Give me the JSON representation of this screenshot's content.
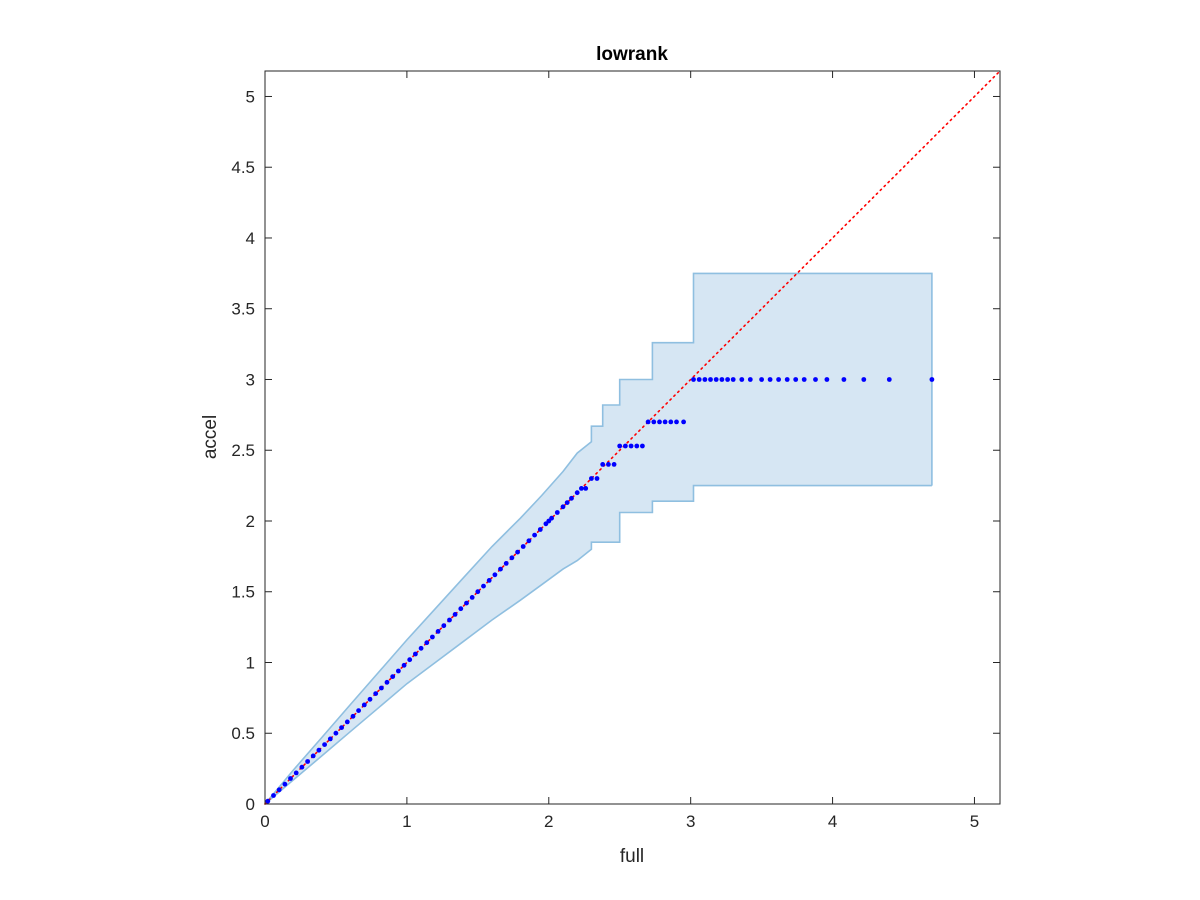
{
  "chart_data": {
    "type": "scatter",
    "title": "lowrank",
    "xlabel": "full",
    "ylabel": "accel",
    "xlim": [
      0,
      5.18
    ],
    "ylim": [
      0,
      5.18
    ],
    "xticks": [
      0,
      1,
      2,
      3,
      4,
      5
    ],
    "yticks": [
      0,
      0.5,
      1,
      1.5,
      2,
      2.5,
      3,
      3.5,
      4,
      4.5,
      5
    ],
    "xtick_labels": [
      "0",
      "1",
      "2",
      "3",
      "4",
      "5"
    ],
    "ytick_labels": [
      "0",
      "0.5",
      "1",
      "1.5",
      "2",
      "2.5",
      "3",
      "3.5",
      "4",
      "4.5",
      "5"
    ],
    "grid": false,
    "reference_line": {
      "style": "dotted",
      "color": "#ff0000",
      "x": [
        0,
        5.18
      ],
      "y": [
        0,
        5.18
      ]
    },
    "band": {
      "fill": "#d6e6f3",
      "stroke": "#8fbfe0",
      "upper": [
        [
          0,
          0
        ],
        [
          0.2,
          0.24
        ],
        [
          0.4,
          0.47
        ],
        [
          0.6,
          0.7
        ],
        [
          0.8,
          0.93
        ],
        [
          1.0,
          1.16
        ],
        [
          1.2,
          1.38
        ],
        [
          1.4,
          1.6
        ],
        [
          1.6,
          1.82
        ],
        [
          1.8,
          2.02
        ],
        [
          1.95,
          2.18
        ],
        [
          2.1,
          2.35
        ],
        [
          2.2,
          2.48
        ],
        [
          2.3,
          2.56
        ],
        [
          2.3,
          2.67
        ],
        [
          2.38,
          2.67
        ],
        [
          2.38,
          2.82
        ],
        [
          2.5,
          2.82
        ],
        [
          2.5,
          3.0
        ],
        [
          2.73,
          3.0
        ],
        [
          2.73,
          3.26
        ],
        [
          3.02,
          3.26
        ],
        [
          3.02,
          3.75
        ],
        [
          4.7,
          3.75
        ]
      ],
      "lower": [
        [
          0,
          0
        ],
        [
          0.2,
          0.17
        ],
        [
          0.4,
          0.34
        ],
        [
          0.6,
          0.51
        ],
        [
          0.8,
          0.68
        ],
        [
          1.0,
          0.85
        ],
        [
          1.2,
          1.0
        ],
        [
          1.4,
          1.15
        ],
        [
          1.6,
          1.3
        ],
        [
          1.8,
          1.44
        ],
        [
          1.95,
          1.55
        ],
        [
          2.1,
          1.66
        ],
        [
          2.2,
          1.72
        ],
        [
          2.3,
          1.8
        ],
        [
          2.3,
          1.85
        ],
        [
          2.5,
          1.85
        ],
        [
          2.5,
          2.06
        ],
        [
          2.73,
          2.06
        ],
        [
          2.73,
          2.14
        ],
        [
          3.02,
          2.14
        ],
        [
          3.02,
          2.25
        ],
        [
          4.7,
          2.25
        ]
      ]
    },
    "series": [
      {
        "color": "#0000ff",
        "x": [
          0.02,
          0.06,
          0.1,
          0.14,
          0.18,
          0.22,
          0.26,
          0.3,
          0.34,
          0.38,
          0.42,
          0.46,
          0.5,
          0.54,
          0.58,
          0.62,
          0.66,
          0.7,
          0.74,
          0.78,
          0.82,
          0.86,
          0.9,
          0.94,
          0.98,
          1.02,
          1.06,
          1.1,
          1.14,
          1.18,
          1.22,
          1.26,
          1.3,
          1.34,
          1.38,
          1.42,
          1.46,
          1.5,
          1.54,
          1.58,
          1.62,
          1.66,
          1.7,
          1.74,
          1.78,
          1.82,
          1.86,
          1.9,
          1.94,
          1.98,
          2.0,
          2.02,
          2.06,
          2.1,
          2.13,
          2.16,
          2.2,
          2.23,
          2.26,
          2.3,
          2.34,
          2.38,
          2.42,
          2.46,
          2.5,
          2.54,
          2.58,
          2.62,
          2.66,
          2.7,
          2.74,
          2.78,
          2.82,
          2.86,
          2.9,
          2.95,
          3.02,
          3.06,
          3.1,
          3.14,
          3.18,
          3.22,
          3.26,
          3.3,
          3.36,
          3.42,
          3.5,
          3.56,
          3.62,
          3.68,
          3.74,
          3.8,
          3.88,
          3.96,
          4.08,
          4.22,
          4.4,
          4.7
        ],
        "y": [
          0.02,
          0.06,
          0.1,
          0.14,
          0.18,
          0.22,
          0.26,
          0.3,
          0.34,
          0.38,
          0.42,
          0.46,
          0.5,
          0.54,
          0.58,
          0.62,
          0.66,
          0.7,
          0.74,
          0.78,
          0.82,
          0.86,
          0.9,
          0.94,
          0.98,
          1.02,
          1.06,
          1.1,
          1.14,
          1.18,
          1.22,
          1.26,
          1.3,
          1.34,
          1.38,
          1.42,
          1.46,
          1.5,
          1.54,
          1.58,
          1.62,
          1.66,
          1.7,
          1.74,
          1.78,
          1.82,
          1.86,
          1.9,
          1.94,
          1.98,
          2.0,
          2.02,
          2.06,
          2.1,
          2.13,
          2.16,
          2.2,
          2.23,
          2.23,
          2.3,
          2.3,
          2.4,
          2.4,
          2.4,
          2.53,
          2.53,
          2.53,
          2.53,
          2.53,
          2.7,
          2.7,
          2.7,
          2.7,
          2.7,
          2.7,
          2.7,
          3.0,
          3.0,
          3.0,
          3.0,
          3.0,
          3.0,
          3.0,
          3.0,
          3.0,
          3.0,
          3.0,
          3.0,
          3.0,
          3.0,
          3.0,
          3.0,
          3.0,
          3.0,
          3.0,
          3.0,
          3.0,
          3.0
        ]
      }
    ]
  }
}
